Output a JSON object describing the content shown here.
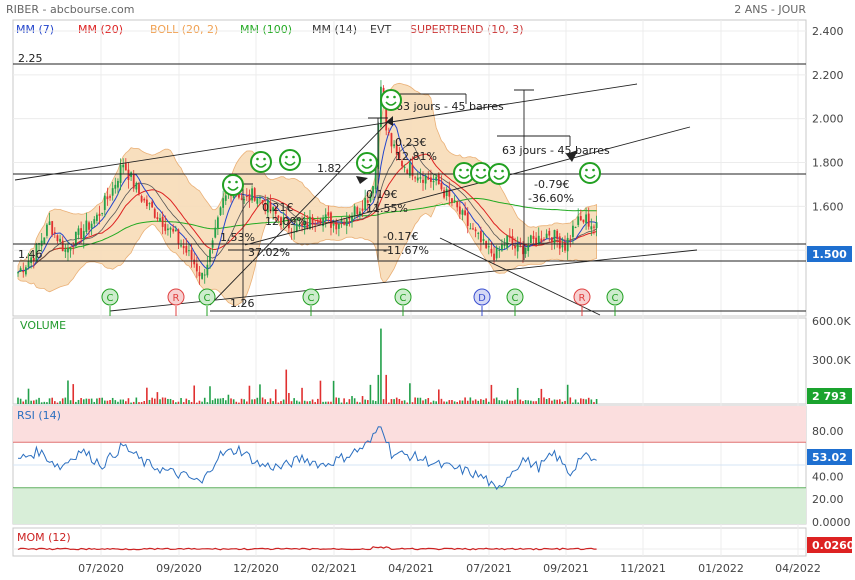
{
  "header": {
    "left": "RIBER - abcbourse.com",
    "right": "2 ANS - JOUR"
  },
  "legend": [
    {
      "text": "MM (7)",
      "color": "#2244cc"
    },
    {
      "text": "MM (20)",
      "color": "#dd2222"
    },
    {
      "text": "BOLL (20, 2)",
      "color": "#f0a050"
    },
    {
      "text": "MM (100)",
      "color": "#22aa22"
    },
    {
      "text": "MM (14)",
      "color": "#333333"
    },
    {
      "text": "EVT",
      "color": "#333333"
    },
    {
      "text": "SUPERTREND (10, 3)",
      "color": "#cc3333"
    }
  ],
  "colors": {
    "up": "#22a04a",
    "down": "#e03030",
    "boll_fill": "#f8dcb8",
    "boll_edge": "#e8a868",
    "mm100": "#22aa22",
    "mm7": "#2244cc",
    "mm20": "#dd2222",
    "rsi_line": "#2b6fc0",
    "price_badge": "#1e6fd0",
    "volume_badge": "#1aa32e",
    "rsi_badge": "#1e6fd0",
    "mom_badge": "#dd2222",
    "rsi_high_fill": "#fbdede",
    "rsi_low_fill": "#d8eed8"
  },
  "chart_data": [
    {
      "type": "candlestick",
      "title": "",
      "x_ticks": [
        "07/2020",
        "09/2020",
        "12/2020",
        "02/2021",
        "04/2021",
        "07/2021",
        "09/2021",
        "11/2021",
        "01/2022",
        "04/2022"
      ],
      "ylim": [
        1.1,
        2.45
      ],
      "y_ticks": [
        "2.400",
        "2.200",
        "2.000",
        "1.800",
        "1.600",
        "1.400"
      ],
      "last_value": "1.500",
      "anchors": [
        [
          0,
          1.3
        ],
        [
          6,
          1.38
        ],
        [
          12,
          1.52
        ],
        [
          18,
          1.4
        ],
        [
          24,
          1.48
        ],
        [
          30,
          1.55
        ],
        [
          36,
          1.68
        ],
        [
          40,
          1.8
        ],
        [
          44,
          1.7
        ],
        [
          48,
          1.62
        ],
        [
          54,
          1.55
        ],
        [
          60,
          1.46
        ],
        [
          66,
          1.36
        ],
        [
          70,
          1.28
        ],
        [
          74,
          1.42
        ],
        [
          78,
          1.62
        ],
        [
          82,
          1.7
        ],
        [
          86,
          1.62
        ],
        [
          90,
          1.66
        ],
        [
          96,
          1.58
        ],
        [
          102,
          1.52
        ],
        [
          108,
          1.5
        ],
        [
          114,
          1.56
        ],
        [
          120,
          1.52
        ],
        [
          126,
          1.56
        ],
        [
          130,
          1.6
        ],
        [
          134,
          1.66
        ],
        [
          136,
          1.78
        ],
        [
          138,
          2.18
        ],
        [
          140,
          1.95
        ],
        [
          144,
          1.82
        ],
        [
          148,
          1.78
        ],
        [
          154,
          1.74
        ],
        [
          160,
          1.7
        ],
        [
          166,
          1.6
        ],
        [
          172,
          1.5
        ],
        [
          178,
          1.4
        ],
        [
          182,
          1.38
        ],
        [
          186,
          1.45
        ],
        [
          190,
          1.4
        ],
        [
          196,
          1.44
        ],
        [
          202,
          1.48
        ],
        [
          208,
          1.42
        ],
        [
          212,
          1.52
        ],
        [
          216,
          1.54
        ],
        [
          220,
          1.5
        ]
      ],
      "annotations": [
        {
          "text": "2.25"
        },
        {
          "text": "1.46"
        },
        {
          "text": "1.82"
        },
        {
          "text": "1.26"
        },
        {
          "text": "63 jours - 45 barres"
        },
        {
          "text": "63 jours - 45 barres"
        },
        {
          "text": "0.23€"
        },
        {
          "text": "12.81%"
        },
        {
          "text": "0.19€"
        },
        {
          "text": "11.55%"
        },
        {
          "text": "-0.79€"
        },
        {
          "text": "-36.60%"
        },
        {
          "text": "0.21€"
        },
        {
          "text": "12.09%"
        },
        {
          "text": "-0.17€"
        },
        {
          "text": "-11.67%"
        },
        {
          "text": "37.02%"
        },
        {
          "text": "1.53%"
        }
      ],
      "markers": [
        "C",
        "R",
        "C",
        "C",
        "C",
        "D",
        "C",
        "R",
        "C"
      ]
    },
    {
      "type": "bar",
      "title": "VOLUME",
      "y_ticks": [
        "600.0K",
        "300.0K",
        "0"
      ],
      "ylim": [
        0,
        650000
      ],
      "last_value": "2 793"
    },
    {
      "type": "line",
      "title": "RSI (14)",
      "y_ticks": [
        "80.00",
        "60.00",
        "40.00",
        "20.00",
        "0.0000"
      ],
      "ylim": [
        0,
        100
      ],
      "bands": [
        70,
        30
      ],
      "last_value": "53.02",
      "anchors": [
        [
          0,
          55
        ],
        [
          8,
          62
        ],
        [
          16,
          48
        ],
        [
          24,
          63
        ],
        [
          32,
          50
        ],
        [
          40,
          67
        ],
        [
          48,
          52
        ],
        [
          56,
          45
        ],
        [
          64,
          40
        ],
        [
          70,
          34
        ],
        [
          76,
          58
        ],
        [
          84,
          64
        ],
        [
          92,
          50
        ],
        [
          100,
          48
        ],
        [
          108,
          56
        ],
        [
          116,
          50
        ],
        [
          124,
          57
        ],
        [
          130,
          64
        ],
        [
          134,
          70
        ],
        [
          138,
          87
        ],
        [
          142,
          60
        ],
        [
          150,
          58
        ],
        [
          160,
          50
        ],
        [
          170,
          45
        ],
        [
          178,
          38
        ],
        [
          182,
          26
        ],
        [
          186,
          40
        ],
        [
          192,
          55
        ],
        [
          198,
          48
        ],
        [
          204,
          60
        ],
        [
          210,
          42
        ],
        [
          214,
          58
        ],
        [
          220,
          53
        ]
      ]
    },
    {
      "type": "line",
      "title": "MOM (12)",
      "last_value": "0.0260"
    }
  ]
}
